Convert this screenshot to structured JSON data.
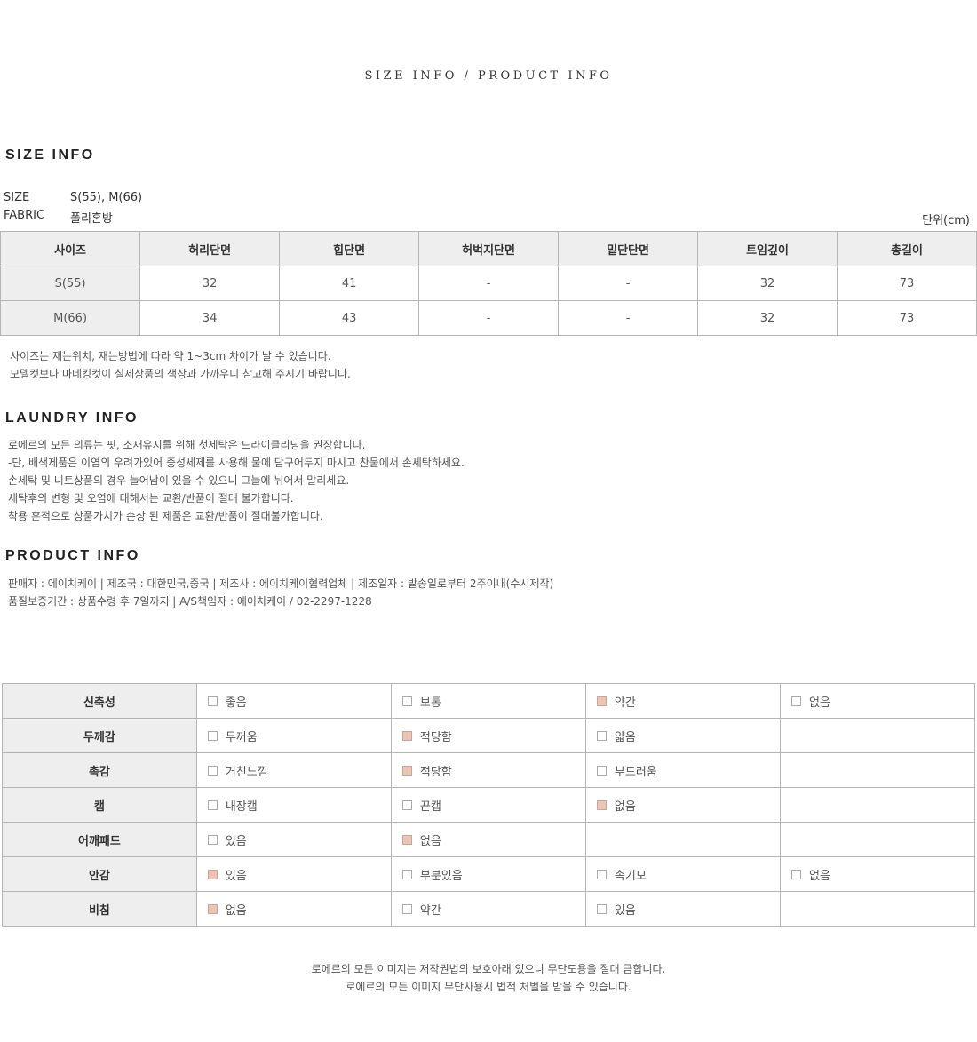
{
  "header": {
    "title": "SIZE INFO / PRODUCT INFO"
  },
  "size_info": {
    "heading": "SIZE INFO",
    "size_label": "SIZE",
    "size_value": "S(55), M(66)",
    "fabric_label": "FABRIC",
    "fabric_value": "폴리혼방",
    "unit": "단위(cm)",
    "columns": [
      "사이즈",
      "허리단면",
      "힙단면",
      "허벅지단면",
      "밑단단면",
      "트임깊이",
      "총길이"
    ],
    "rows": [
      [
        "S(55)",
        "32",
        "41",
        "-",
        "-",
        "32",
        "73"
      ],
      [
        "M(66)",
        "34",
        "43",
        "-",
        "-",
        "32",
        "73"
      ]
    ],
    "notes": [
      "사이즈는 재는위치, 재는방법에 따라 약 1~3cm 차이가 날 수 있습니다.",
      "모델컷보다 마네킹컷이 실제상품의 색상과 가까우니 참고해 주시기 바랍니다."
    ]
  },
  "laundry_info": {
    "heading": "LAUNDRY INFO",
    "lines": [
      "로에르의 모든 의류는 핏, 소재유지를 위해 첫세탁은 드라이클리닝을 권장합니다.",
      "-단, 배색제품은 이염의 우려가있어 중성세제를 사용해 물에 담구어두지 마시고 찬물에서 손세탁하세요.",
      "손세탁 및 니트상품의 경우 늘어남이 있을 수 있으니 그늘에 뉘어서 말리세요.",
      "세탁후의 변형 및 오염에 대해서는 교환/반품이 절대 불가합니다.",
      "착용 흔적으로 상품가치가 손상 된 제품은 교환/반품이 절대불가합니다."
    ]
  },
  "product_info": {
    "heading": "PRODUCT INFO",
    "lines": [
      "판매자 : 에이치케이 | 제조국 : 대한민국,중국 | 제조사 : 에이치케이협력업체 | 제조일자 : 발송일로부터 2주이내(수시제작)",
      "품질보증기간 : 상품수령 후 7일까지 | A/S책임자 : 에이치케이 / 02-2297-1228"
    ]
  },
  "fabric_chart": {
    "check_color": "#edc4b3",
    "rows": [
      {
        "label": "신축성",
        "options": [
          {
            "text": "좋음",
            "checked": false
          },
          {
            "text": "보통",
            "checked": false
          },
          {
            "text": "약간",
            "checked": true
          },
          {
            "text": "없음",
            "checked": false
          }
        ]
      },
      {
        "label": "두께감",
        "options": [
          {
            "text": "두꺼움",
            "checked": false
          },
          {
            "text": "적당함",
            "checked": true
          },
          {
            "text": "얇음",
            "checked": false
          }
        ]
      },
      {
        "label": "촉감",
        "options": [
          {
            "text": "거친느낌",
            "checked": false
          },
          {
            "text": "적당함",
            "checked": true
          },
          {
            "text": "부드러움",
            "checked": false
          }
        ]
      },
      {
        "label": "캡",
        "options": [
          {
            "text": "내장캡",
            "checked": false
          },
          {
            "text": "끈캡",
            "checked": false
          },
          {
            "text": "없음",
            "checked": true
          }
        ]
      },
      {
        "label": "어깨패드",
        "options": [
          {
            "text": "있음",
            "checked": false
          },
          {
            "text": "없음",
            "checked": true
          }
        ]
      },
      {
        "label": "안감",
        "options": [
          {
            "text": "있음",
            "checked": true
          },
          {
            "text": "부분있음",
            "checked": false
          },
          {
            "text": "속기모",
            "checked": false
          },
          {
            "text": "없음",
            "checked": false
          }
        ]
      },
      {
        "label": "비침",
        "options": [
          {
            "text": "없음",
            "checked": true
          },
          {
            "text": "약간",
            "checked": false
          },
          {
            "text": "있음",
            "checked": false
          }
        ]
      }
    ]
  },
  "footer": {
    "lines": [
      "로에르의 모든 이미지는 저작권법의 보호아래 있으니 무단도용을 절대 금합니다.",
      "로에르의 모든 이미지 무단사용시 법적 처벌을 받을 수 있습니다."
    ]
  }
}
